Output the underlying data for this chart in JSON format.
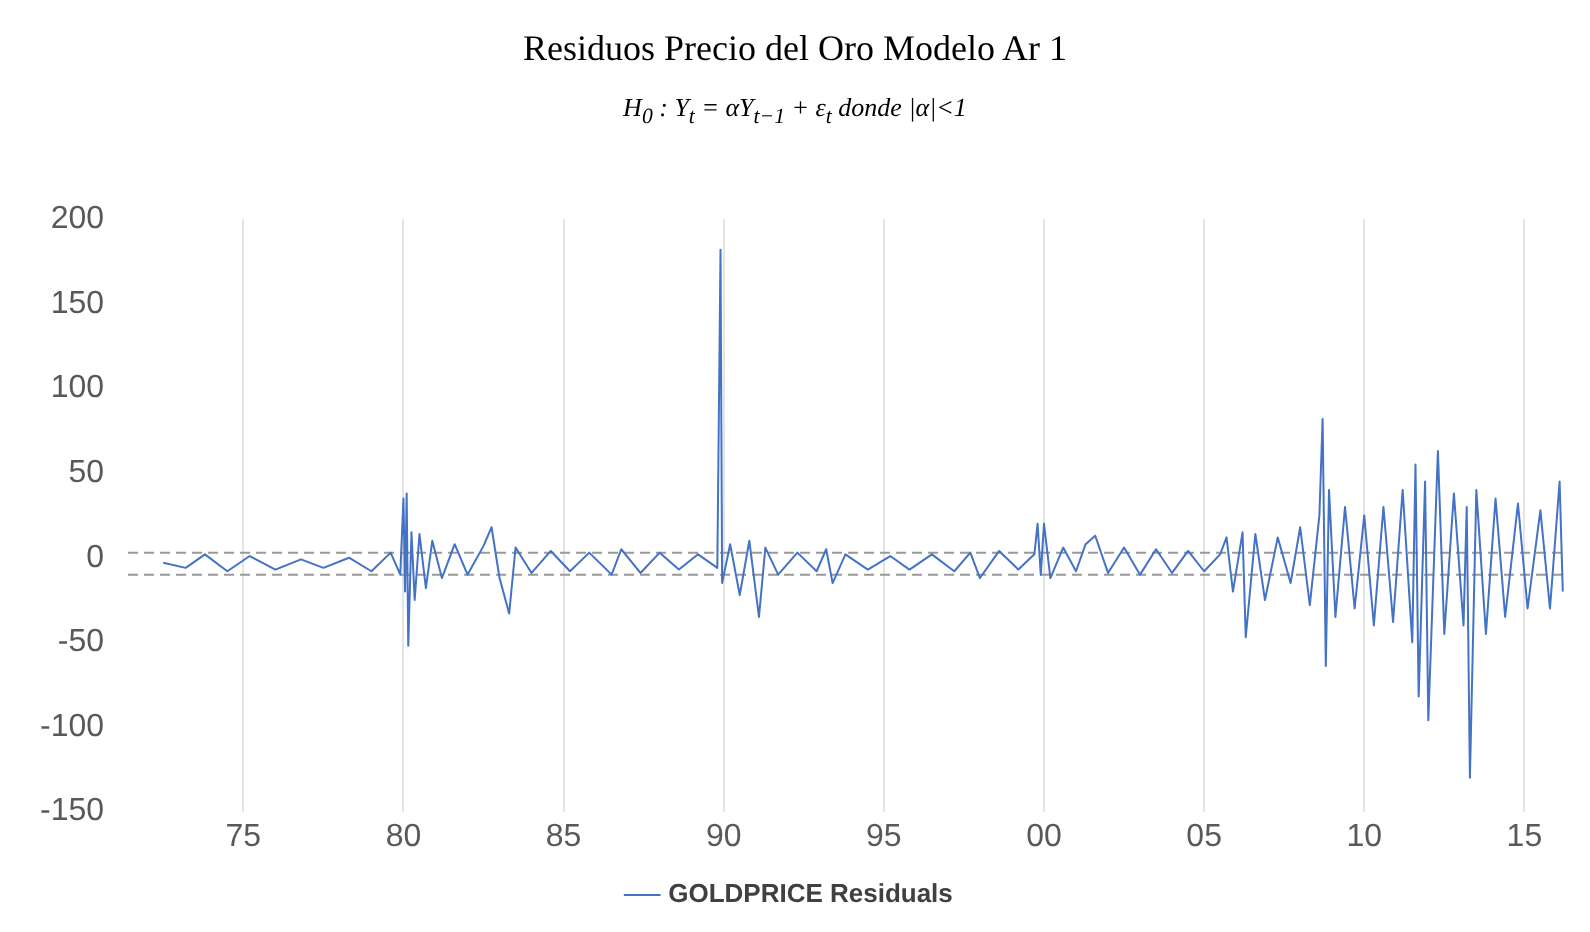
{
  "chart_data": {
    "type": "line",
    "title": "Residuos Precio del Oro Modelo Ar 1",
    "subtitle": "H$_{0}$ : Y$_{t}$ = αY$_{t−1}$ + ε$_{t}$ donde |α|<1",
    "x": [
      1972.5,
      1973.2,
      1973.8,
      1974.5,
      1975.2,
      1976,
      1976.8,
      1977.5,
      1978.3,
      1979,
      1979.6,
      1979.9,
      1980.0,
      1980.05,
      1980.1,
      1980.15,
      1980.25,
      1980.35,
      1980.5,
      1980.7,
      1980.9,
      1981.2,
      1981.6,
      1982,
      1982.5,
      1982.75,
      1983,
      1983.3,
      1983.5,
      1984,
      1984.6,
      1985.2,
      1985.8,
      1986.5,
      1986.8,
      1987.4,
      1988,
      1988.6,
      1989.2,
      1989.8,
      1989.9,
      1989.95,
      1990.2,
      1990.5,
      1990.8,
      1991.1,
      1991.3,
      1991.7,
      1992.3,
      1992.9,
      1993.2,
      1993.4,
      1993.8,
      1994.5,
      1995.2,
      1995.8,
      1996.5,
      1997.2,
      1997.7,
      1998,
      1998.6,
      1999.2,
      1999.7,
      1999.8,
      1999.9,
      2000.0,
      2000.2,
      2000.6,
      2001,
      2001.3,
      2001.6,
      2002,
      2002.5,
      2003,
      2003.5,
      2004,
      2004.5,
      2005,
      2005.5,
      2005.7,
      2005.9,
      2006.2,
      2006.3,
      2006.6,
      2006.9,
      2007.3,
      2007.7,
      2008,
      2008.3,
      2008.6,
      2008.7,
      2008.8,
      2008.9,
      2009.1,
      2009.4,
      2009.7,
      2010,
      2010.3,
      2010.6,
      2010.9,
      2011.2,
      2011.5,
      2011.6,
      2011.7,
      2011.9,
      2012.0,
      2012.3,
      2012.5,
      2012.8,
      2013.1,
      2013.2,
      2013.3,
      2013.5,
      2013.8,
      2014.1,
      2014.4,
      2014.8,
      2015.1,
      2015.5,
      2015.8,
      2016.1,
      2016.2
    ],
    "series": [
      {
        "name": "GOLDPRICE Residuals",
        "color": "#4472c4",
        "values": [
          -3,
          -6,
          2,
          -8,
          1,
          -7,
          -1,
          -6,
          0,
          -8,
          3,
          -10,
          35,
          -20,
          38,
          -52,
          15,
          -25,
          14,
          -18,
          10,
          -12,
          8,
          -10,
          7,
          18,
          -12,
          -33,
          6,
          -9,
          4,
          -8,
          3,
          -10,
          5,
          -9,
          3,
          -7,
          2,
          -6,
          182,
          -15,
          8,
          -22,
          10,
          -35,
          6,
          -10,
          3,
          -8,
          5,
          -15,
          2,
          -7,
          1,
          -7,
          2,
          -8,
          3,
          -12,
          4,
          -7,
          2,
          20,
          -10,
          20,
          -12,
          6,
          -8,
          8,
          13,
          -9,
          6,
          -10,
          5,
          -9,
          4,
          -8,
          2,
          12,
          -20,
          15,
          -47,
          14,
          -25,
          12,
          -15,
          18,
          -28,
          25,
          82,
          -64,
          40,
          -35,
          30,
          -30,
          25,
          -40,
          30,
          -38,
          40,
          -50,
          55,
          -82,
          45,
          -96,
          63,
          -45,
          38,
          -40,
          30,
          -130,
          40,
          -45,
          35,
          -35,
          32,
          -30,
          28,
          -30,
          45,
          -20
        ]
      }
    ],
    "xlim": [
      1971.4,
      2016.3
    ],
    "xticks": [
      {
        "value": 1975,
        "label": "75"
      },
      {
        "value": 1980,
        "label": "80"
      },
      {
        "value": 1985,
        "label": "85"
      },
      {
        "value": 1990,
        "label": "90"
      },
      {
        "value": 1995,
        "label": "95"
      },
      {
        "value": 2000,
        "label": "00"
      },
      {
        "value": 2005,
        "label": "05"
      },
      {
        "value": 2010,
        "label": "10"
      },
      {
        "value": 2015,
        "label": "15"
      }
    ],
    "ylim": [
      -150,
      200
    ],
    "yticks": [
      -150,
      -100,
      -50,
      0,
      50,
      100,
      150,
      200
    ],
    "ref_lines": [
      {
        "axis": "y",
        "value": 3,
        "color": "#999999",
        "line_style": "dashed"
      },
      {
        "axis": "y",
        "value": -10,
        "color": "#999999",
        "line_style": "dashed"
      }
    ],
    "grid": "x",
    "legend": "bottom",
    "marker": "none",
    "line_style": "solid"
  }
}
